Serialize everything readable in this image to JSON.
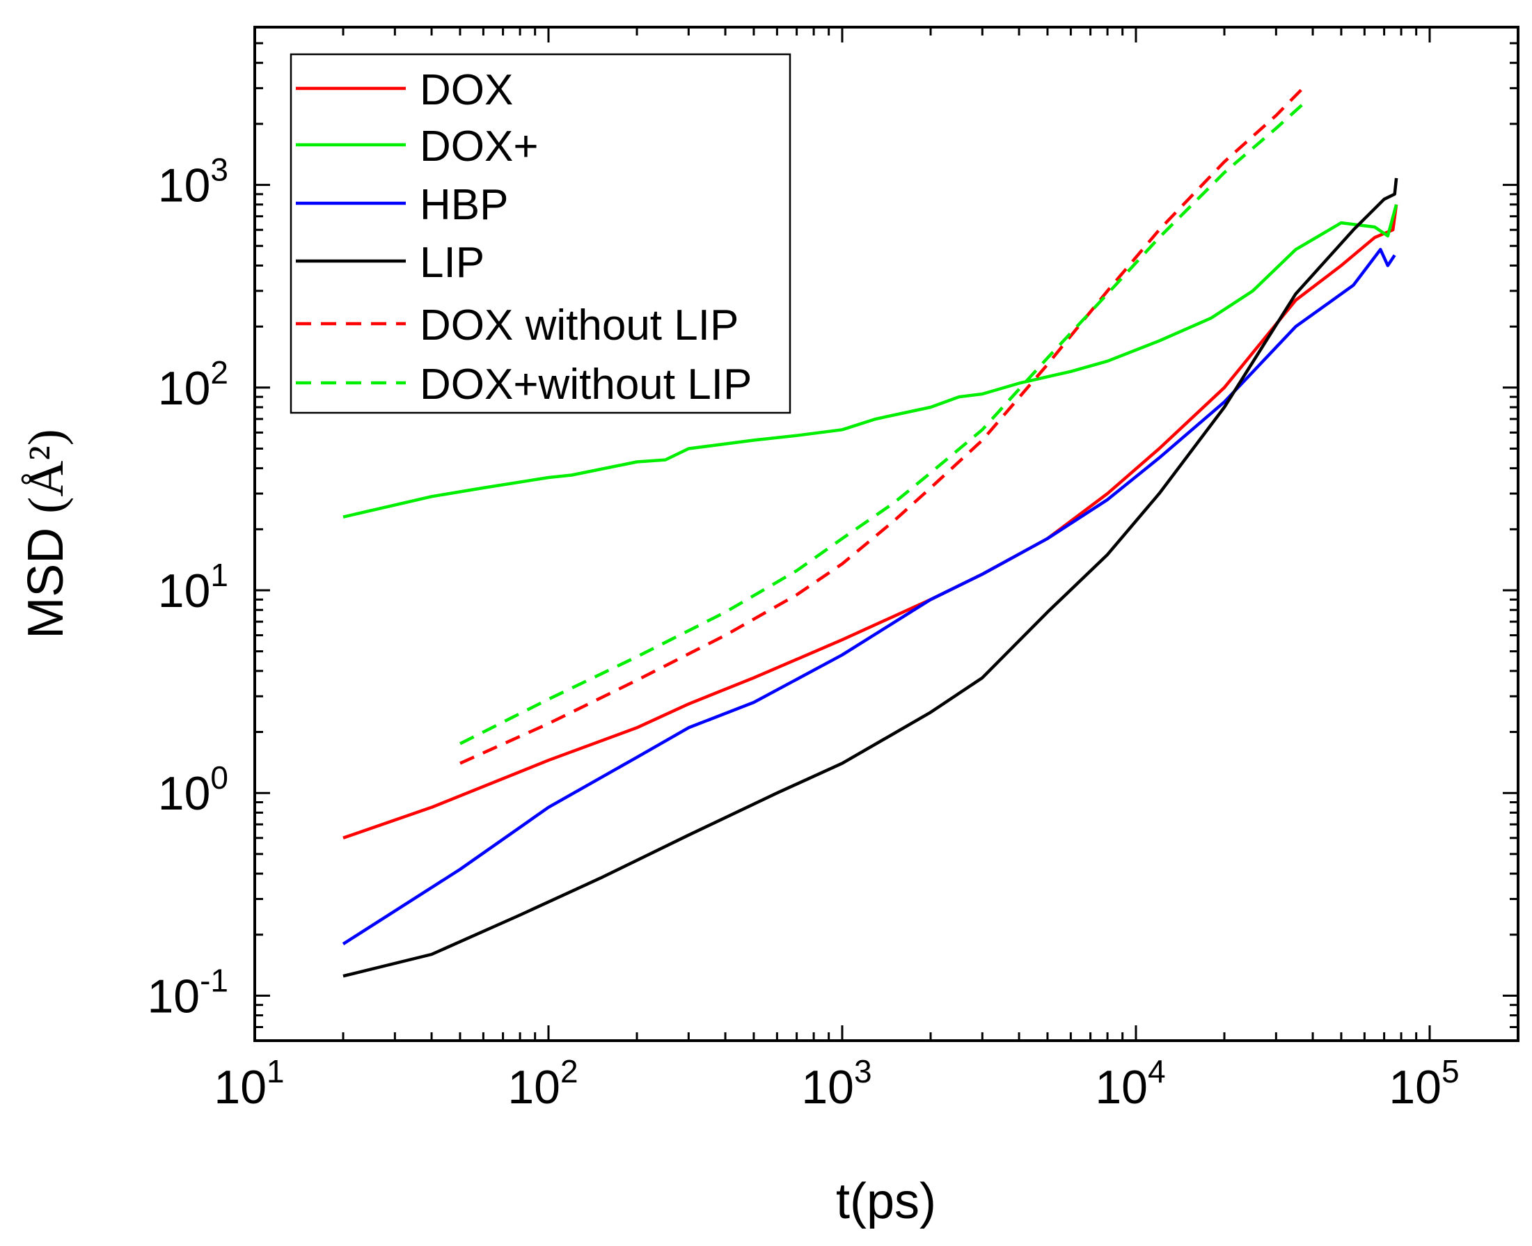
{
  "chart_data": {
    "type": "line",
    "xlabel": "t(ps)",
    "ylabel": {
      "prefix": "MSD",
      "unit": "(Å²)"
    },
    "xscale": "log",
    "yscale": "log",
    "xlim": [
      10,
      200000
    ],
    "ylim": [
      0.06,
      6000
    ],
    "x_ticks": [
      {
        "base": "10",
        "exp": "1",
        "value": 10
      },
      {
        "base": "10",
        "exp": "2",
        "value": 100
      },
      {
        "base": "10",
        "exp": "3",
        "value": 1000
      },
      {
        "base": "10",
        "exp": "4",
        "value": 10000
      },
      {
        "base": "10",
        "exp": "5",
        "value": 100000
      }
    ],
    "y_ticks": [
      {
        "base": "10",
        "exp": "-1",
        "value": 0.1
      },
      {
        "base": "10",
        "exp": "0",
        "value": 1
      },
      {
        "base": "10",
        "exp": "1",
        "value": 10
      },
      {
        "base": "10",
        "exp": "2",
        "value": 100
      },
      {
        "base": "10",
        "exp": "3",
        "value": 1000
      }
    ],
    "grid": false,
    "legend_position": "top-left",
    "series": [
      {
        "name": "DOX",
        "color": "#ff0000",
        "dash": "solid",
        "points": [
          [
            20,
            0.6
          ],
          [
            40,
            0.85
          ],
          [
            100,
            1.45
          ],
          [
            200,
            2.1
          ],
          [
            300,
            2.75
          ],
          [
            500,
            3.7
          ],
          [
            1000,
            5.7
          ],
          [
            2000,
            9
          ],
          [
            3000,
            12
          ],
          [
            5000,
            18
          ],
          [
            8000,
            30
          ],
          [
            12000,
            50
          ],
          [
            20000,
            100
          ],
          [
            35000,
            270
          ],
          [
            50000,
            400
          ],
          [
            65000,
            550
          ],
          [
            75000,
            600
          ],
          [
            77000,
            800
          ]
        ]
      },
      {
        "name": "DOX+",
        "color": "#00ee00",
        "dash": "solid",
        "points": [
          [
            20,
            23
          ],
          [
            40,
            29
          ],
          [
            60,
            32
          ],
          [
            100,
            36
          ],
          [
            120,
            37
          ],
          [
            200,
            43
          ],
          [
            250,
            44
          ],
          [
            300,
            50
          ],
          [
            500,
            55
          ],
          [
            700,
            58
          ],
          [
            1000,
            62
          ],
          [
            1300,
            70
          ],
          [
            2000,
            80
          ],
          [
            2500,
            90
          ],
          [
            3000,
            93
          ],
          [
            4000,
            105
          ],
          [
            6000,
            120
          ],
          [
            8000,
            135
          ],
          [
            12000,
            170
          ],
          [
            18000,
            220
          ],
          [
            25000,
            300
          ],
          [
            35000,
            480
          ],
          [
            50000,
            650
          ],
          [
            65000,
            620
          ],
          [
            72000,
            560
          ],
          [
            77000,
            800
          ]
        ]
      },
      {
        "name": "HBP",
        "color": "#0000ff",
        "dash": "solid",
        "points": [
          [
            20,
            0.18
          ],
          [
            50,
            0.42
          ],
          [
            100,
            0.85
          ],
          [
            200,
            1.5
          ],
          [
            300,
            2.1
          ],
          [
            500,
            2.8
          ],
          [
            1000,
            4.8
          ],
          [
            2000,
            9
          ],
          [
            3000,
            12
          ],
          [
            5000,
            18
          ],
          [
            8000,
            28
          ],
          [
            12000,
            45
          ],
          [
            20000,
            85
          ],
          [
            35000,
            200
          ],
          [
            55000,
            320
          ],
          [
            68000,
            480
          ],
          [
            72000,
            400
          ],
          [
            76000,
            450
          ]
        ]
      },
      {
        "name": "LIP",
        "color": "#000000",
        "dash": "solid",
        "points": [
          [
            20,
            0.125
          ],
          [
            40,
            0.16
          ],
          [
            80,
            0.25
          ],
          [
            150,
            0.38
          ],
          [
            300,
            0.62
          ],
          [
            600,
            1
          ],
          [
            1000,
            1.4
          ],
          [
            2000,
            2.5
          ],
          [
            3000,
            3.7
          ],
          [
            5000,
            7.8
          ],
          [
            8000,
            15
          ],
          [
            12000,
            30
          ],
          [
            20000,
            80
          ],
          [
            35000,
            290
          ],
          [
            55000,
            600
          ],
          [
            70000,
            850
          ],
          [
            76000,
            900
          ],
          [
            77000,
            1080
          ]
        ]
      },
      {
        "name": "DOX without LIP",
        "color": "#ff0000",
        "dash": "dashed",
        "points": [
          [
            50,
            1.4
          ],
          [
            100,
            2.2
          ],
          [
            200,
            3.6
          ],
          [
            400,
            6
          ],
          [
            700,
            9.5
          ],
          [
            1000,
            13.5
          ],
          [
            1500,
            22
          ],
          [
            2000,
            32
          ],
          [
            3000,
            55
          ],
          [
            5000,
            130
          ],
          [
            8000,
            300
          ],
          [
            12000,
            600
          ],
          [
            20000,
            1300
          ],
          [
            30000,
            2200
          ],
          [
            37000,
            3000
          ]
        ]
      },
      {
        "name": "DOX+without LIP",
        "color": "#00ee00",
        "dash": "dashed",
        "points": [
          [
            50,
            1.75
          ],
          [
            100,
            2.9
          ],
          [
            200,
            4.7
          ],
          [
            400,
            7.8
          ],
          [
            700,
            12.5
          ],
          [
            1000,
            18
          ],
          [
            1500,
            27
          ],
          [
            2000,
            38
          ],
          [
            3000,
            62
          ],
          [
            5000,
            140
          ],
          [
            8000,
            290
          ],
          [
            12000,
            550
          ],
          [
            20000,
            1150
          ],
          [
            30000,
            1900
          ],
          [
            37000,
            2500
          ]
        ]
      }
    ]
  }
}
